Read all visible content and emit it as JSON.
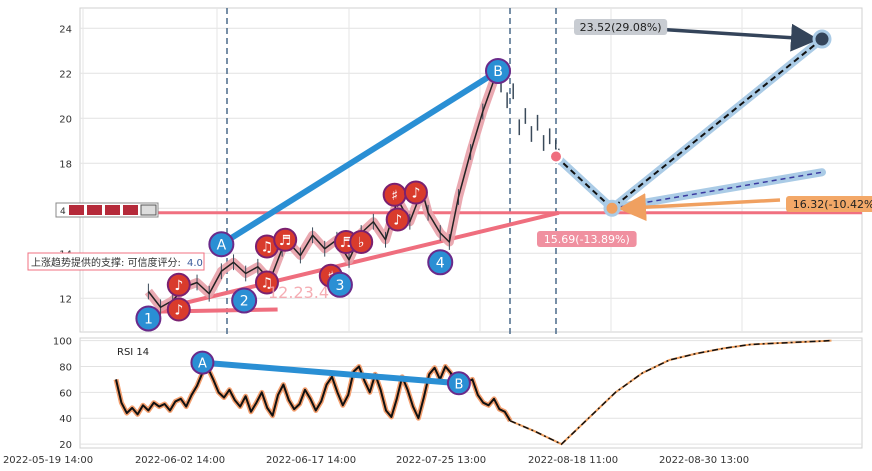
{
  "chart_data": [
    {
      "type": "line",
      "panel": "price",
      "ylim": [
        10.5,
        24.9
      ],
      "yticks": [
        12,
        14,
        16,
        18,
        20,
        22,
        24
      ],
      "xlabels": [
        "2022-05-19 14:00",
        "2022-06-02 14:00",
        "2022-06-17 14:00",
        "2022-07-25 13:00",
        "2022-08-18 11:00",
        "2022-08-30 13:00"
      ],
      "grid": true,
      "price_line": {
        "x": [
          20,
          28,
          36,
          44,
          52,
          60,
          68,
          76,
          84,
          92,
          100,
          108,
          112,
          120,
          128,
          136,
          144,
          152,
          160,
          168,
          176,
          184,
          192,
          200,
          204,
          212,
          218,
          224,
          232,
          240,
          250
        ],
        "y": [
          12.3,
          11.6,
          11.9,
          12.5,
          12.7,
          12.2,
          13.2,
          13.6,
          13.1,
          13.4,
          12.8,
          14.2,
          14.5,
          13.9,
          14.8,
          14.2,
          14.6,
          13.7,
          14.9,
          15.4,
          14.6,
          16.4,
          15.4,
          16.8,
          15.8,
          14.9,
          14.5,
          16.5,
          18.5,
          20.3,
          22.2
        ]
      },
      "candles_after_peak": {
        "x": [
          252,
          256,
          260,
          264,
          268,
          272,
          276,
          280,
          284,
          288,
          290
        ],
        "y": [
          21.5,
          20.8,
          21.2,
          19.6,
          20.1,
          19.3,
          19.8,
          18.9,
          19.2,
          18.7,
          18.3
        ]
      },
      "levels": {
        "support_line_value": 15.69,
        "support_line_label": "15.69(-13.89%)",
        "horizontal_resistance": 15.8,
        "target_up_label": "23.52(29.08%)",
        "target_down_label": "16.32(-10.42%)",
        "faded_value": "12.23.4"
      },
      "waves": [
        {
          "label": "1",
          "x": 20,
          "y": 11.1
        },
        {
          "label": "2",
          "x": 83,
          "y": 11.9
        },
        {
          "label": "3",
          "x": 146,
          "y": 12.6
        },
        {
          "label": "4",
          "x": 212,
          "y": 13.6
        },
        {
          "label": "A",
          "x": 68,
          "y": 14.4
        },
        {
          "label": "B",
          "x": 250,
          "y": 22.1
        }
      ],
      "markers": [
        {
          "symbol": "♪",
          "x": 40,
          "y": 12.6
        },
        {
          "symbol": "♪",
          "x": 40,
          "y": 11.5
        },
        {
          "symbol": "♫",
          "x": 98,
          "y": 14.3
        },
        {
          "symbol": "♬",
          "x": 110,
          "y": 14.6
        },
        {
          "symbol": "♫",
          "x": 98,
          "y": 12.7
        },
        {
          "symbol": "♬",
          "x": 150,
          "y": 14.5
        },
        {
          "symbol": "♭",
          "x": 160,
          "y": 14.5
        },
        {
          "symbol": "♯",
          "x": 140,
          "y": 13.0
        },
        {
          "symbol": "♯",
          "x": 182,
          "y": 16.6
        },
        {
          "symbol": "♪",
          "x": 184,
          "y": 15.5
        },
        {
          "symbol": "♪",
          "x": 196,
          "y": 16.7
        }
      ],
      "projection": {
        "up_target": 23.52,
        "down_target": 16.32,
        "start_value": 18.3
      },
      "annotation_text": "上涨趋势提供的支撑: 可信度评分: ",
      "annotation_score": "4.0",
      "small_badge_text": "4"
    },
    {
      "type": "line",
      "panel": "rsi",
      "title": "RSI 14",
      "ylim": [
        17,
        102
      ],
      "yticks": [
        20,
        40,
        60,
        80,
        100
      ],
      "grid": true,
      "series": {
        "x": [
          0,
          4,
          8,
          12,
          16,
          20,
          24,
          28,
          32,
          36,
          40,
          44,
          48,
          52,
          56,
          60,
          64,
          68,
          72,
          76,
          80,
          84,
          88,
          92,
          96,
          100,
          104,
          108,
          112,
          116,
          120,
          124,
          128,
          132,
          136,
          140,
          144,
          148,
          152,
          156,
          160,
          164,
          168,
          172,
          176,
          180,
          184,
          188,
          192,
          196,
          200,
          204,
          208,
          212,
          216,
          220,
          224,
          228,
          232,
          236,
          240,
          244,
          248,
          252,
          256,
          260,
          264,
          268,
          272,
          276,
          280,
          284,
          288,
          292
        ],
        "y": [
          70,
          52,
          44,
          48,
          43,
          50,
          46,
          52,
          49,
          51,
          46,
          53,
          55,
          49,
          58,
          65,
          75,
          79,
          70,
          60,
          56,
          62,
          54,
          49,
          57,
          45,
          52,
          60,
          48,
          42,
          58,
          66,
          54,
          47,
          51,
          62,
          55,
          46,
          53,
          66,
          72,
          60,
          50,
          58,
          76,
          80,
          69,
          60,
          74,
          62,
          46,
          41,
          55,
          72,
          62,
          49,
          40,
          56,
          74,
          79,
          70,
          80,
          75,
          62,
          60,
          68,
          70,
          58,
          52,
          50,
          55,
          47,
          45,
          38
        ]
      },
      "projection": {
        "x": [
          292,
          310,
          330,
          350,
          370,
          390,
          410,
          430,
          450,
          470,
          490,
          510,
          530
        ],
        "y": [
          38,
          30,
          20,
          40,
          60,
          75,
          85,
          90,
          94,
          97,
          98,
          99,
          100
        ]
      },
      "markers": [
        {
          "label": "A",
          "x": 64,
          "y": 83
        },
        {
          "label": "B",
          "x": 254,
          "y": 67
        }
      ]
    }
  ]
}
